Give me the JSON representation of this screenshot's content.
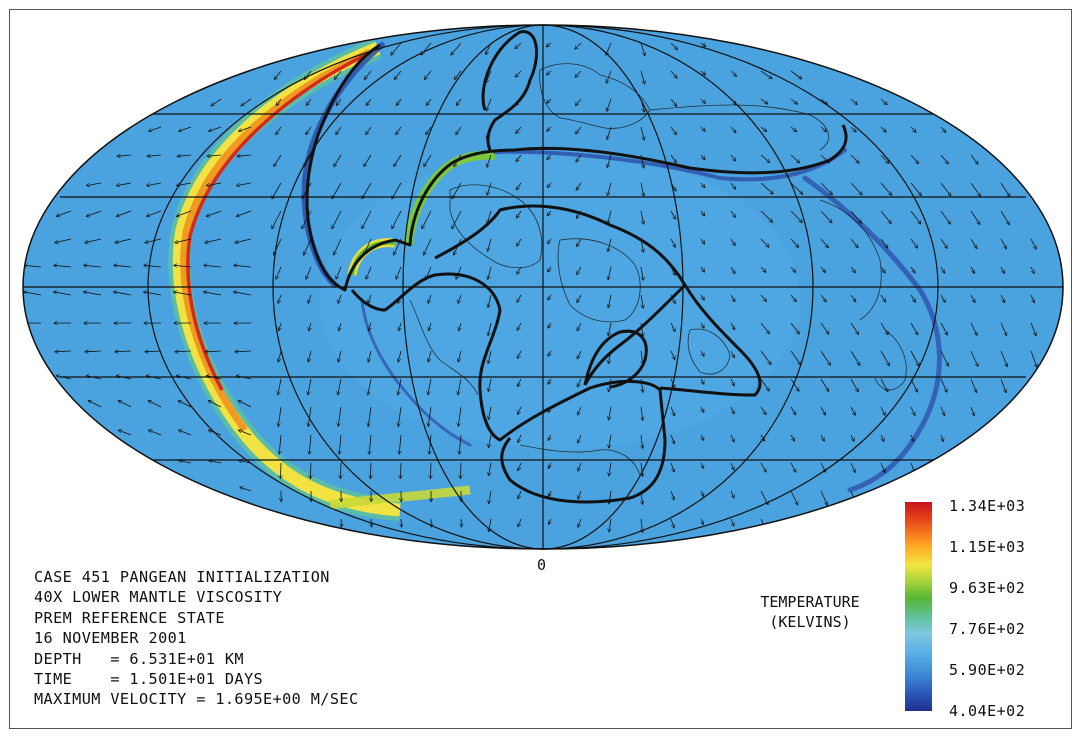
{
  "map": {
    "center_meridian_label": "0",
    "ocean_color": "#4aa3df",
    "ridge_color_hot": "#d42a1a",
    "subduction_color": "#2c4ca8"
  },
  "info_lines": [
    "CASE 451 PANGEAN INITIALIZATION",
    "40X LOWER MANTLE VISCOSITY",
    "PREM REFERENCE STATE",
    "16 NOVEMBER 2001",
    "DEPTH   = 6.531E+01 KM",
    "TIME    = 1.501E+01 DAYS",
    "MAXIMUM VELOCITY = 1.695E+00 M/SEC"
  ],
  "colorbar": {
    "title_line1": "TEMPERATURE",
    "title_line2": "(KELVINS)",
    "labels": [
      "1.34E+03",
      "1.15E+03",
      "9.63E+02",
      "7.76E+02",
      "5.90E+02",
      "4.04E+02"
    ]
  }
}
